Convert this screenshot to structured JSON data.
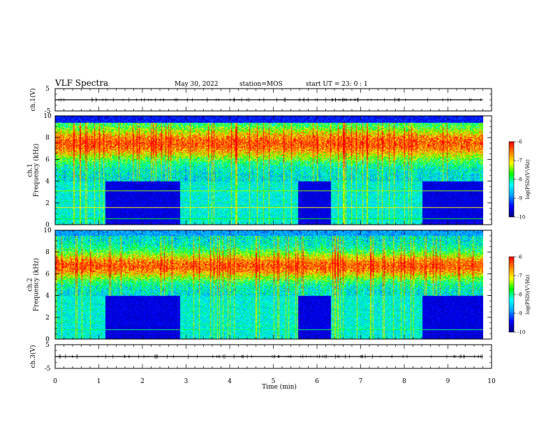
{
  "header": {
    "title": "VLF Spectra",
    "date": "May 30, 2022",
    "station": "station=MOS",
    "start": "start UT =  23: 0  : 1"
  },
  "colors": {
    "scale": [
      "#000080",
      "#0000ff",
      "#00a0ff",
      "#00ffff",
      "#00ff00",
      "#ffff00",
      "#ff8000",
      "#ff0000",
      "#ffffff"
    ],
    "axis": "#000000",
    "background": "#ffffff"
  },
  "chart_data": [
    {
      "type": "line",
      "panel": "ch1-signal",
      "ylabel": "ch.1(V)",
      "ylim": [
        -5,
        5
      ],
      "yticks": [
        "5",
        "-5"
      ],
      "xlim": [
        0,
        10
      ],
      "series": [
        {
          "x": [
            0,
            9.8
          ],
          "y": [
            0,
            0
          ]
        }
      ]
    },
    {
      "type": "heatmap",
      "panel": "ch1-spectrogram",
      "ylabel": "ch.1\nFrequency (kHz)",
      "ylim": [
        0,
        10
      ],
      "yticks": [
        "0",
        "2",
        "4",
        "6",
        "8",
        "10"
      ],
      "xlim": [
        0,
        10
      ],
      "data_xmax": 9.8,
      "quiet_intervals_min": [
        [
          1.15,
          2.85
        ],
        [
          5.55,
          6.3
        ],
        [
          8.4,
          9.8
        ]
      ],
      "band_khz": [
        6.0,
        9.0
      ],
      "colorbar": {
        "label": "log(PSD)(V²/Hz)",
        "range": [
          -10,
          -6
        ],
        "ticks": [
          "-6",
          "-7",
          "-8",
          "-9",
          "-10"
        ]
      }
    },
    {
      "type": "heatmap",
      "panel": "ch2-spectrogram",
      "ylabel": "ch.2\nFrequency (kHz)",
      "ylim": [
        0,
        10
      ],
      "yticks": [
        "0",
        "2",
        "4",
        "6",
        "8",
        "10"
      ],
      "xlim": [
        0,
        10
      ],
      "data_xmax": 9.8,
      "quiet_intervals_min": [
        [
          1.15,
          2.85
        ],
        [
          5.55,
          6.3
        ],
        [
          8.4,
          9.8
        ]
      ],
      "band_khz": [
        5.5,
        8.0
      ],
      "colorbar": {
        "label": "log(PSD)(V²/Hz)",
        "range": [
          -10,
          -6
        ],
        "ticks": [
          "-6",
          "-7",
          "-8",
          "-9",
          "-10"
        ]
      }
    },
    {
      "type": "line",
      "panel": "ch3-signal",
      "ylabel": "ch.3(V)",
      "ylim": [
        -5,
        5
      ],
      "yticks": [
        "5",
        "-5"
      ],
      "xlim": [
        0,
        10
      ],
      "series": [
        {
          "x": [
            0,
            9.8
          ],
          "y": [
            0,
            0
          ]
        }
      ]
    }
  ],
  "xaxis": {
    "label": "Time (min)",
    "ticks": [
      "0",
      "1",
      "2",
      "3",
      "4",
      "5",
      "6",
      "7",
      "8",
      "9",
      "10"
    ]
  }
}
